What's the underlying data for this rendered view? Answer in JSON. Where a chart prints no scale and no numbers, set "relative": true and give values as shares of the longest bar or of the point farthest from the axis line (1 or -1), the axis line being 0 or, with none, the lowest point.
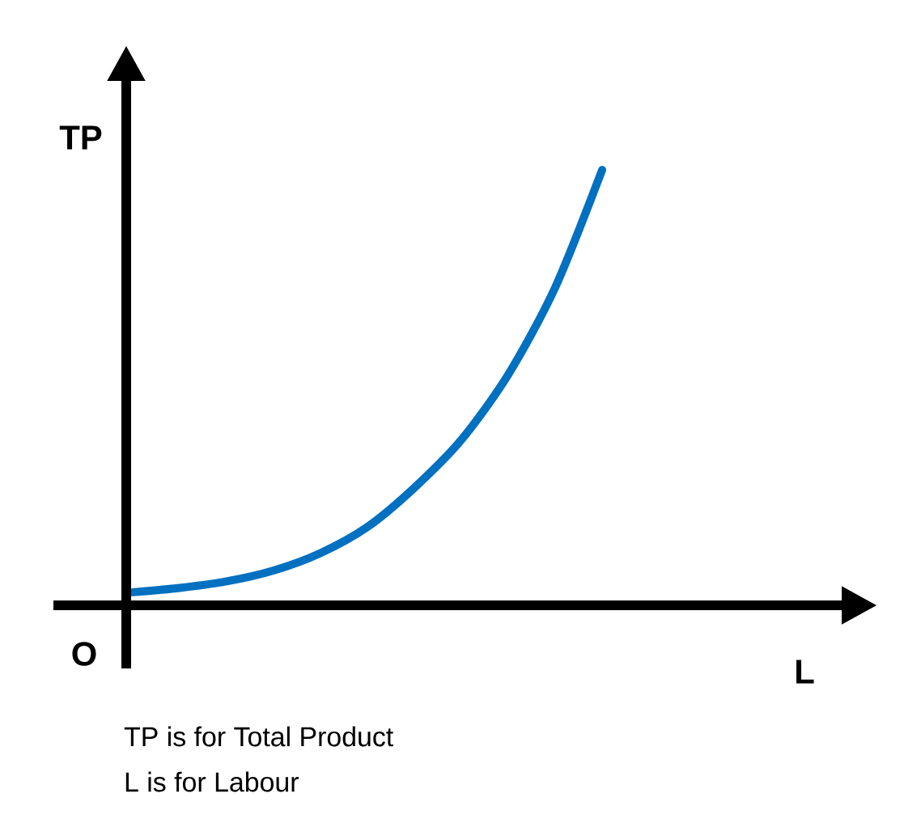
{
  "chart_data": {
    "type": "line",
    "relative": true,
    "ylabel": "TP",
    "categories": [
      null,
      null,
      null,
      null,
      null,
      null,
      null,
      null,
      null,
      null,
      null
    ],
    "series": [
      {
        "color": "#0070c0",
        "values": [
          0.03,
          0.04,
          0.055,
          0.08,
          0.12,
          0.18,
          0.27,
          0.38,
          0.53,
          0.73,
          1.0
        ]
      }
    ],
    "annotations": [
      "O",
      "L",
      "TP is for Total Product",
      "L is for Labour"
    ]
  }
}
